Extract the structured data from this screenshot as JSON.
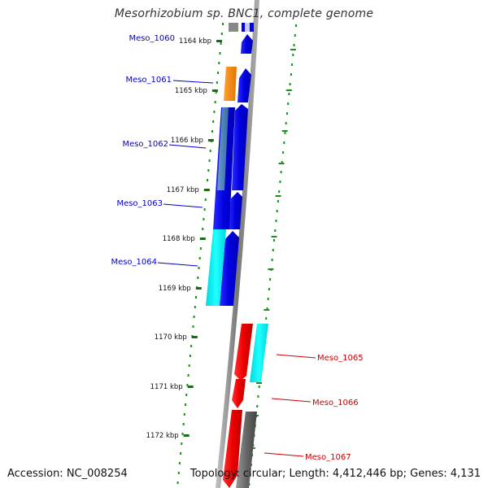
{
  "title": "Mesorhizobium sp. BNC1, complete genome",
  "accession": "Accession: NC_008254",
  "summary": "Topology: circular; Length: 4,412,446 bp; Genes: 4,131",
  "ticks": [
    {
      "label": "1164 kbp",
      "pos": 1164
    },
    {
      "label": "1165 kbp",
      "pos": 1165
    },
    {
      "label": "1166 kbp",
      "pos": 1166
    },
    {
      "label": "1167 kbp",
      "pos": 1167
    },
    {
      "label": "1168 kbp",
      "pos": 1168
    },
    {
      "label": "1169 kbp",
      "pos": 1169
    },
    {
      "label": "1170 kbp",
      "pos": 1170
    },
    {
      "label": "1171 kbp",
      "pos": 1171
    },
    {
      "label": "1172 kbp",
      "pos": 1172
    }
  ],
  "gene_labels": [
    {
      "name": "Meso_1060",
      "strand": "forward",
      "color": "#0000cc"
    },
    {
      "name": "Meso_1061",
      "strand": "forward",
      "color": "#0000cc"
    },
    {
      "name": "Meso_1062",
      "strand": "forward",
      "color": "#0000cc"
    },
    {
      "name": "Meso_1063",
      "strand": "forward",
      "color": "#0000cc"
    },
    {
      "name": "Meso_1064",
      "strand": "forward",
      "color": "#0000cc"
    },
    {
      "name": "Meso_1065",
      "strand": "reverse",
      "color": "#cc0000"
    },
    {
      "name": "Meso_1066",
      "strand": "reverse",
      "color": "#cc0000"
    },
    {
      "name": "Meso_1067",
      "strand": "reverse",
      "color": "#cc0000"
    }
  ],
  "colors": {
    "forward_cds": "#0000ee",
    "reverse_cds": "#ee0000",
    "orange_feature": "#ff8800",
    "cyan_feature": "#00e5ee",
    "steel_feature": "#4682b4",
    "gray_feature": "#666666",
    "backbone": "#888888",
    "gc_dots": "#228b22"
  }
}
